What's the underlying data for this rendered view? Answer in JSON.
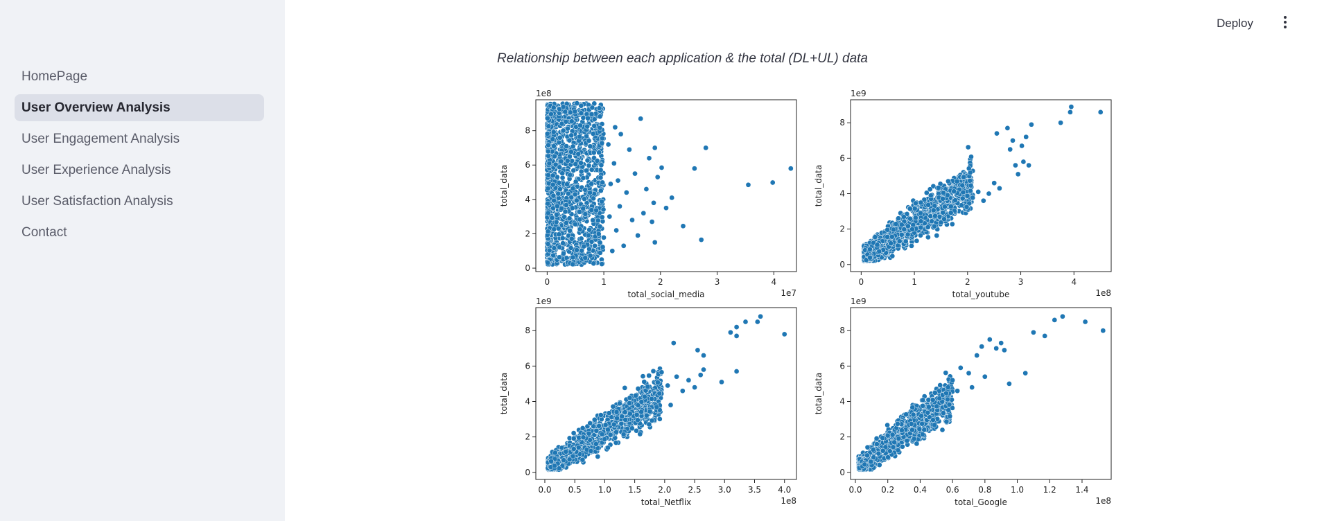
{
  "sidebar": {
    "items": [
      {
        "label": "HomePage",
        "active": false
      },
      {
        "label": "User Overview Analysis",
        "active": true
      },
      {
        "label": "User Engagement Analysis",
        "active": false
      },
      {
        "label": "User Experience Analysis",
        "active": false
      },
      {
        "label": "User Satisfaction Analysis",
        "active": false
      },
      {
        "label": "Contact",
        "active": false
      }
    ]
  },
  "header": {
    "deploy_label": "Deploy",
    "menu_icon": "vertical-dots-icon"
  },
  "main": {
    "caption": "Relationship between each application & the total (DL+UL) data"
  },
  "colors": {
    "point": "#1f77b4",
    "point_edge": "#ffffff"
  },
  "chart_data": [
    {
      "type": "scatter",
      "xlabel": "total_social_media",
      "ylabel": "total_data",
      "x_multiplier": "1e7",
      "y_multiplier": "1e8",
      "xlim": [
        -0.2,
        4.4
      ],
      "ylim": [
        -0.2,
        9.8
      ],
      "xticks": [
        0,
        1,
        2,
        3,
        4
      ],
      "xtick_labels": [
        "0",
        "1",
        "2",
        "3",
        "4"
      ],
      "yticks": [
        0,
        2,
        4,
        6,
        8
      ],
      "ytick_labels": [
        "0",
        "2",
        "4",
        "6",
        "8"
      ],
      "points": [
        [
          4.3,
          5.8
        ],
        [
          3.98,
          4.98
        ],
        [
          3.55,
          4.85
        ],
        [
          2.8,
          7.0
        ],
        [
          2.72,
          1.65
        ],
        [
          2.4,
          2.45
        ],
        [
          2.6,
          5.8
        ],
        [
          2.2,
          4.1
        ],
        [
          2.1,
          3.5
        ],
        [
          2.02,
          5.85
        ],
        [
          1.95,
          5.3
        ],
        [
          1.9,
          7.0
        ],
        [
          1.88,
          3.8
        ],
        [
          1.85,
          2.7
        ],
        [
          1.9,
          1.5
        ],
        [
          1.8,
          6.4
        ],
        [
          1.75,
          4.6
        ],
        [
          1.7,
          3.2
        ],
        [
          1.65,
          8.7
        ],
        [
          1.6,
          1.9
        ],
        [
          1.55,
          5.5
        ],
        [
          1.5,
          2.8
        ],
        [
          1.45,
          6.9
        ],
        [
          1.4,
          4.4
        ],
        [
          1.35,
          1.3
        ],
        [
          1.3,
          7.8
        ],
        [
          1.28,
          3.6
        ],
        [
          1.25,
          5.1
        ],
        [
          1.22,
          2.2
        ],
        [
          1.2,
          8.2
        ],
        [
          1.18,
          6.1
        ],
        [
          1.15,
          1.0
        ],
        [
          1.12,
          4.9
        ],
        [
          1.1,
          3.0
        ],
        [
          1.08,
          7.2
        ]
      ],
      "clusters": [
        {
          "x_range": [
            0,
            1.0
          ],
          "y_range": [
            0.2,
            9.6
          ],
          "shape": "box",
          "density": "very high"
        }
      ]
    },
    {
      "type": "scatter",
      "xlabel": "total_youtube",
      "ylabel": "total_data",
      "x_multiplier": "1e8",
      "y_multiplier": "1e9",
      "xlim": [
        -0.2,
        4.7
      ],
      "ylim": [
        -0.4,
        9.3
      ],
      "xticks": [
        0,
        1,
        2,
        3,
        4
      ],
      "xtick_labels": [
        "0",
        "1",
        "2",
        "3",
        "4"
      ],
      "yticks": [
        0,
        2,
        4,
        6,
        8
      ],
      "ytick_labels": [
        "0",
        "2",
        "4",
        "6",
        "8"
      ],
      "points": [
        [
          4.5,
          8.6
        ],
        [
          3.95,
          8.9
        ],
        [
          3.93,
          8.6
        ],
        [
          3.75,
          8.0
        ],
        [
          3.2,
          7.9
        ],
        [
          3.1,
          7.2
        ],
        [
          3.02,
          6.7
        ],
        [
          3.05,
          5.8
        ],
        [
          3.15,
          5.6
        ],
        [
          2.95,
          5.1
        ],
        [
          2.9,
          5.6
        ],
        [
          2.85,
          7.0
        ],
        [
          2.8,
          6.5
        ],
        [
          2.75,
          7.7
        ],
        [
          2.55,
          7.4
        ],
        [
          2.4,
          4.0
        ],
        [
          2.5,
          4.6
        ],
        [
          2.3,
          3.6
        ],
        [
          2.2,
          4.1
        ],
        [
          2.6,
          4.3
        ]
      ],
      "clusters": [
        {
          "from": [
            0.05,
            0.4
          ],
          "to": [
            2.1,
            4.6
          ],
          "spread": 1.3,
          "shape": "band",
          "density": "very high"
        }
      ]
    },
    {
      "type": "scatter",
      "xlabel": "total_Netflix",
      "ylabel": "total_data",
      "x_multiplier": "1e8",
      "y_multiplier": "1e9",
      "xlim": [
        -0.15,
        4.2
      ],
      "ylim": [
        -0.4,
        9.3
      ],
      "xticks": [
        0.0,
        0.5,
        1.0,
        1.5,
        2.0,
        2.5,
        3.0,
        3.5,
        4.0
      ],
      "xtick_labels": [
        "0.0",
        "0.5",
        "1.0",
        "1.5",
        "2.0",
        "2.5",
        "3.0",
        "3.5",
        "4.0"
      ],
      "yticks": [
        0,
        2,
        4,
        6,
        8
      ],
      "ytick_labels": [
        "0",
        "2",
        "4",
        "6",
        "8"
      ],
      "points": [
        [
          4.0,
          7.8
        ],
        [
          3.6,
          8.8
        ],
        [
          3.55,
          8.5
        ],
        [
          3.35,
          8.5
        ],
        [
          3.2,
          7.7
        ],
        [
          3.2,
          8.2
        ],
        [
          3.1,
          7.9
        ],
        [
          3.2,
          5.7
        ],
        [
          2.95,
          5.1
        ],
        [
          2.65,
          6.6
        ],
        [
          2.65,
          5.8
        ],
        [
          2.6,
          5.5
        ],
        [
          2.55,
          6.9
        ],
        [
          2.5,
          4.8
        ],
        [
          2.15,
          7.3
        ],
        [
          2.1,
          3.8
        ],
        [
          2.3,
          4.6
        ],
        [
          2.2,
          5.4
        ],
        [
          2.4,
          5.2
        ],
        [
          2.05,
          4.9
        ]
      ],
      "clusters": [
        {
          "from": [
            0.05,
            0.3
          ],
          "to": [
            1.95,
            4.5
          ],
          "spread": 1.2,
          "shape": "band",
          "density": "very high"
        }
      ]
    },
    {
      "type": "scatter",
      "xlabel": "total_Google",
      "ylabel": "total_data",
      "x_multiplier": "1e8",
      "y_multiplier": "1e9",
      "xlim": [
        -0.03,
        1.58
      ],
      "ylim": [
        -0.4,
        9.3
      ],
      "xticks": [
        0.0,
        0.2,
        0.4,
        0.6,
        0.8,
        1.0,
        1.2,
        1.4
      ],
      "xtick_labels": [
        "0.0",
        "0.2",
        "0.4",
        "0.6",
        "0.8",
        "1.0",
        "1.2",
        "1.4"
      ],
      "yticks": [
        0,
        2,
        4,
        6,
        8
      ],
      "ytick_labels": [
        "0",
        "2",
        "4",
        "6",
        "8"
      ],
      "points": [
        [
          1.53,
          8.0
        ],
        [
          1.42,
          8.5
        ],
        [
          1.28,
          8.8
        ],
        [
          1.23,
          8.6
        ],
        [
          1.17,
          7.7
        ],
        [
          1.1,
          7.9
        ],
        [
          1.05,
          5.6
        ],
        [
          0.95,
          5.0
        ],
        [
          0.92,
          6.9
        ],
        [
          0.9,
          7.3
        ],
        [
          0.87,
          7.0
        ],
        [
          0.83,
          7.5
        ],
        [
          0.78,
          7.1
        ],
        [
          0.8,
          5.4
        ],
        [
          0.75,
          6.6
        ],
        [
          0.7,
          5.6
        ],
        [
          0.72,
          4.8
        ],
        [
          0.65,
          5.9
        ],
        [
          0.63,
          4.6
        ],
        [
          0.6,
          5.2
        ]
      ],
      "clusters": [
        {
          "from": [
            0.02,
            0.3
          ],
          "to": [
            0.6,
            4.4
          ],
          "spread": 1.2,
          "shape": "band",
          "density": "very high"
        }
      ]
    }
  ]
}
